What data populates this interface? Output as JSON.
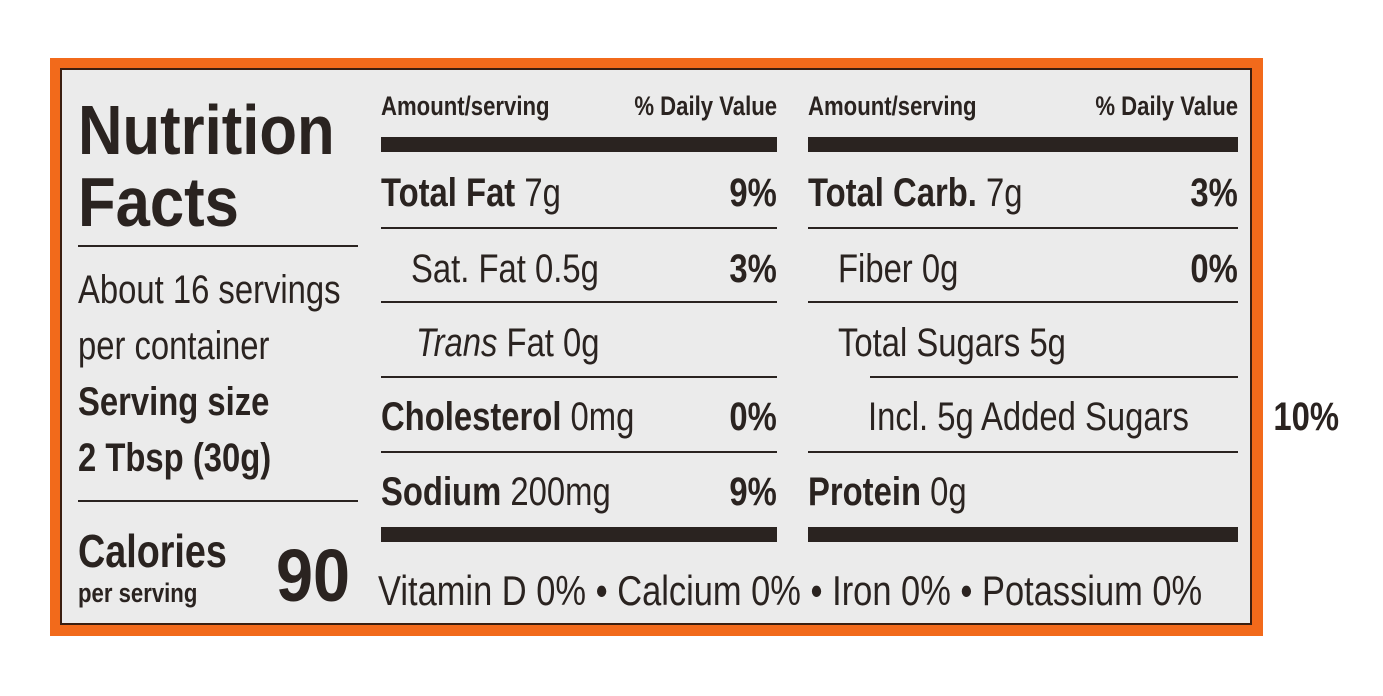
{
  "title_line1": "Nutrition",
  "title_line2": "Facts",
  "servings_line1": "About 16 servings",
  "servings_line2": "per container",
  "serving_size_label": "Serving size",
  "serving_size_value": "2 Tbsp (30g)",
  "calories_label": "Calories",
  "calories_sub": "per serving",
  "calories_value": "90",
  "header": {
    "amount": "Amount/serving",
    "dv": "% Daily Value"
  },
  "left_rows": [
    {
      "name": "Total Fat",
      "amount": "7g",
      "dv": "9%"
    },
    {
      "name": "Sat. Fat",
      "amount": "0.5g",
      "dv": "3%"
    },
    {
      "name": "Trans",
      "amount": "Fat 0g",
      "dv": ""
    },
    {
      "name": "Cholesterol",
      "amount": "0mg",
      "dv": "0%"
    },
    {
      "name": "Sodium",
      "amount": "200mg",
      "dv": "9%"
    }
  ],
  "right_rows": [
    {
      "name": "Total Carb.",
      "amount": "7g",
      "dv": "3%"
    },
    {
      "name": "Fiber",
      "amount": "0g",
      "dv": "0%"
    },
    {
      "name": "Total Sugars",
      "amount": "5g",
      "dv": ""
    },
    {
      "name": "Incl. 5g Added Sugars",
      "amount": "",
      "dv": "10%"
    },
    {
      "name": "Protein",
      "amount": "0g",
      "dv": ""
    }
  ],
  "vitamins": "Vitamin D 0% • Calcium 0% • Iron 0% • Potassium 0%",
  "colors": {
    "border": "#f26a1b",
    "text": "#2a2320",
    "background": "#ebebeb"
  }
}
